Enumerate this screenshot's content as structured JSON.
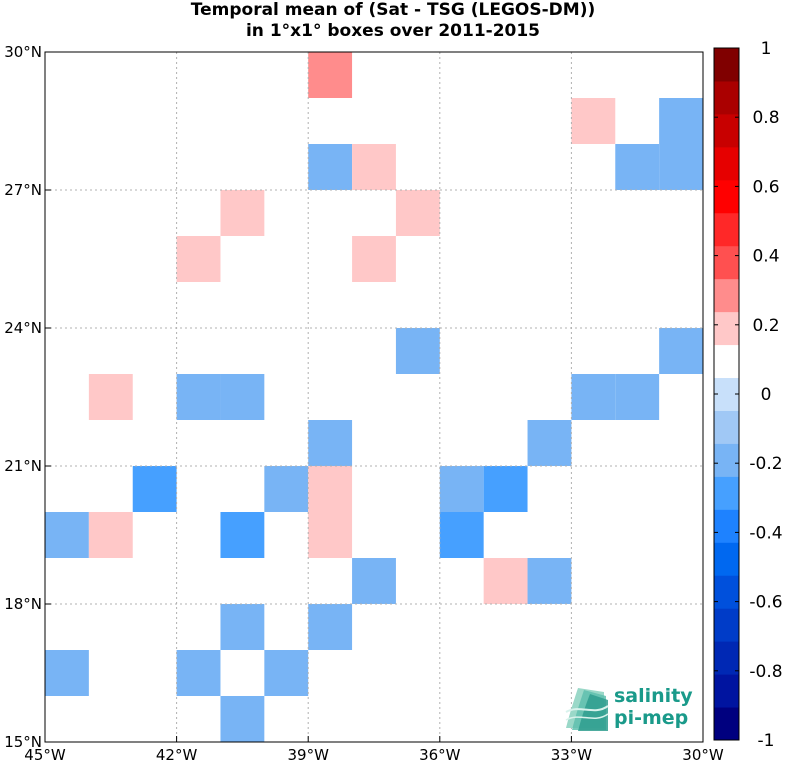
{
  "chart_data": {
    "type": "heatmap",
    "title": [
      "Temporal mean of (Sat - TSG (LEGOS-DM))",
      "in 1°x1° boxes over 2011-2015"
    ],
    "x_ticks": [
      {
        "value": -45,
        "label": "45°W"
      },
      {
        "value": -42,
        "label": "42°W"
      },
      {
        "value": -39,
        "label": "39°W"
      },
      {
        "value": -36,
        "label": "36°W"
      },
      {
        "value": -33,
        "label": "33°W"
      },
      {
        "value": -30,
        "label": "30°W"
      }
    ],
    "y_ticks": [
      {
        "value": 15,
        "label": "15°N"
      },
      {
        "value": 18,
        "label": "18°N"
      },
      {
        "value": 21,
        "label": "21°N"
      },
      {
        "value": 24,
        "label": "24°N"
      },
      {
        "value": 27,
        "label": "27°N"
      },
      {
        "value": 30,
        "label": "30°N"
      }
    ],
    "xlim": [
      -45,
      -30
    ],
    "ylim": [
      15,
      30
    ],
    "grid": true,
    "colorbar": {
      "range": [
        -1,
        1
      ],
      "step": 0.1,
      "ticks": [
        {
          "value": 1,
          "label": "1"
        },
        {
          "value": 0.8,
          "label": "0.8"
        },
        {
          "value": 0.6,
          "label": "0.6"
        },
        {
          "value": 0.4,
          "label": "0.4"
        },
        {
          "value": 0.2,
          "label": "0.2"
        },
        {
          "value": 0,
          "label": "0"
        },
        {
          "value": -0.2,
          "label": "-0.2"
        },
        {
          "value": -0.4,
          "label": "-0.4"
        },
        {
          "value": -0.6,
          "label": "-0.6"
        },
        {
          "value": -0.8,
          "label": "-0.8"
        },
        {
          "value": -1,
          "label": "-1"
        }
      ],
      "colors": [
        "#00007f",
        "#0014a0",
        "#0028b4",
        "#003cc8",
        "#0050dc",
        "#0068f0",
        "#1e82ff",
        "#46a0ff",
        "#78b4f5",
        "#a0c8f5",
        "#c8e0fa",
        "#ffffff",
        "#ffc8c8",
        "#ff8c8c",
        "#ff5050",
        "#ff2828",
        "#ff0000",
        "#e60000",
        "#c80000",
        "#aa0000",
        "#800000"
      ]
    },
    "cells": [
      {
        "lon": -39,
        "lat": 29,
        "value": 0.25
      },
      {
        "lon": -33,
        "lat": 28,
        "value": 0.15
      },
      {
        "lon": -31,
        "lat": 28,
        "value": -0.15
      },
      {
        "lon": -32,
        "lat": 27,
        "value": -0.15
      },
      {
        "lon": -31,
        "lat": 27,
        "value": -0.15
      },
      {
        "lon": -39,
        "lat": 27,
        "value": -0.15
      },
      {
        "lon": -38,
        "lat": 27,
        "value": 0.15
      },
      {
        "lon": -41,
        "lat": 26,
        "value": 0.15
      },
      {
        "lon": -37,
        "lat": 26,
        "value": 0.15
      },
      {
        "lon": -42,
        "lat": 25,
        "value": 0.15
      },
      {
        "lon": -38,
        "lat": 25,
        "value": 0.15
      },
      {
        "lon": -37,
        "lat": 23,
        "value": -0.15
      },
      {
        "lon": -31,
        "lat": 23,
        "value": -0.15
      },
      {
        "lon": -44,
        "lat": 22,
        "value": 0.15
      },
      {
        "lon": -42,
        "lat": 22,
        "value": -0.15
      },
      {
        "lon": -41,
        "lat": 22,
        "value": -0.15
      },
      {
        "lon": -33,
        "lat": 22,
        "value": -0.15
      },
      {
        "lon": -32,
        "lat": 22,
        "value": -0.15
      },
      {
        "lon": -39,
        "lat": 21,
        "value": -0.15
      },
      {
        "lon": -34,
        "lat": 21,
        "value": -0.15
      },
      {
        "lon": -43,
        "lat": 20,
        "value": -0.25
      },
      {
        "lon": -40,
        "lat": 20,
        "value": -0.15
      },
      {
        "lon": -39,
        "lat": 20,
        "value": 0.15
      },
      {
        "lon": -36,
        "lat": 20,
        "value": -0.15
      },
      {
        "lon": -35,
        "lat": 20,
        "value": -0.25
      },
      {
        "lon": -45,
        "lat": 19,
        "value": -0.15
      },
      {
        "lon": -44,
        "lat": 19,
        "value": 0.15
      },
      {
        "lon": -41,
        "lat": 19,
        "value": -0.25
      },
      {
        "lon": -39,
        "lat": 19,
        "value": 0.15
      },
      {
        "lon": -36,
        "lat": 19,
        "value": -0.25
      },
      {
        "lon": -38,
        "lat": 18,
        "value": -0.15
      },
      {
        "lon": -35,
        "lat": 18,
        "value": 0.15
      },
      {
        "lon": -34,
        "lat": 18,
        "value": -0.15
      },
      {
        "lon": -41,
        "lat": 17,
        "value": -0.15
      },
      {
        "lon": -39,
        "lat": 17,
        "value": -0.15
      },
      {
        "lon": -45,
        "lat": 16,
        "value": -0.15
      },
      {
        "lon": -42,
        "lat": 16,
        "value": -0.15
      },
      {
        "lon": -40,
        "lat": 16,
        "value": -0.15
      },
      {
        "lon": -41,
        "lat": 15,
        "value": -0.15
      }
    ]
  },
  "logo": {
    "line1": "salinity",
    "line2": "pi-mep"
  }
}
